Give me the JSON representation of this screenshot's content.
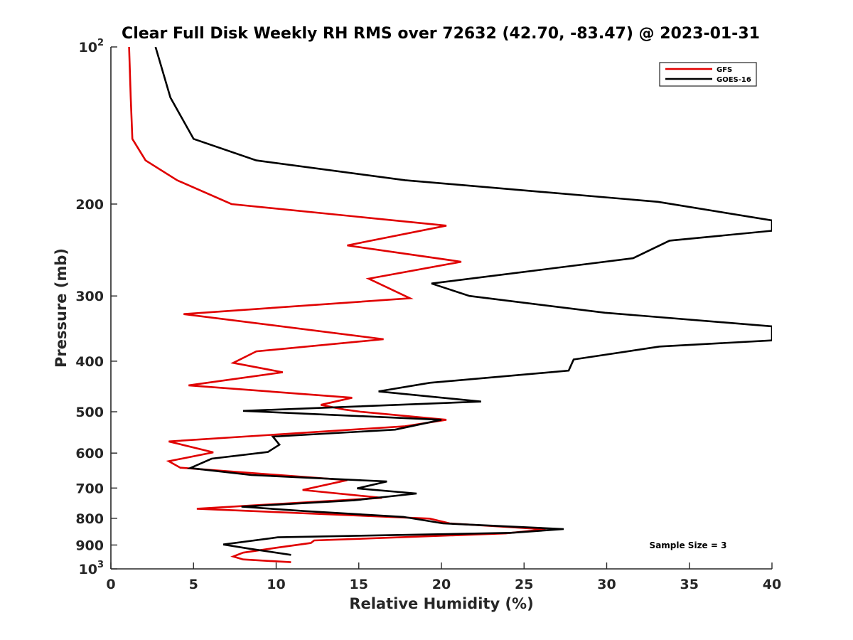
{
  "chart_data": {
    "type": "line",
    "title": "Clear Full Disk Weekly RH RMS over 72632 (42.70, -83.47) @ 2023-01-31",
    "xlabel": "Relative Humidity (%)",
    "ylabel": "Pressure (mb)",
    "xlim": [
      0,
      40
    ],
    "ylim": [
      100,
      1000
    ],
    "y_scale": "log",
    "y_reversed": true,
    "x_ticks": [
      "0",
      "5",
      "10",
      "15",
      "20",
      "25",
      "30",
      "35",
      "40"
    ],
    "y_ticks": [
      {
        "value": 100,
        "label": "10",
        "sup": "2"
      },
      {
        "value": 200,
        "label": "200",
        "sup": ""
      },
      {
        "value": 300,
        "label": "300",
        "sup": ""
      },
      {
        "value": 400,
        "label": "400",
        "sup": ""
      },
      {
        "value": 500,
        "label": "500",
        "sup": ""
      },
      {
        "value": 600,
        "label": "600",
        "sup": ""
      },
      {
        "value": 700,
        "label": "700",
        "sup": ""
      },
      {
        "value": 800,
        "label": "800",
        "sup": ""
      },
      {
        "value": 900,
        "label": "900",
        "sup": ""
      },
      {
        "value": 1000,
        "label": "10",
        "sup": "3"
      }
    ],
    "grid": false,
    "legend_position": "top-right",
    "annotation": "Sample Size = 3",
    "series": [
      {
        "name": "GFS",
        "color": "#e00000",
        "points": [
          [
            1.1,
            100
          ],
          [
            1.2,
            125
          ],
          [
            1.3,
            150
          ],
          [
            2.1,
            165
          ],
          [
            4.0,
            180
          ],
          [
            7.3,
            200
          ],
          [
            20.3,
            220
          ],
          [
            14.3,
            240
          ],
          [
            21.2,
            258
          ],
          [
            15.6,
            278
          ],
          [
            18.1,
            303
          ],
          [
            4.4,
            325
          ],
          [
            16.5,
            363
          ],
          [
            8.8,
            383
          ],
          [
            7.4,
            403
          ],
          [
            10.4,
            420
          ],
          [
            4.7,
            445
          ],
          [
            14.6,
            470
          ],
          [
            12.7,
            485
          ],
          [
            14.1,
            495
          ],
          [
            15.1,
            500
          ],
          [
            20.3,
            518
          ],
          [
            17.8,
            533
          ],
          [
            3.5,
            570
          ],
          [
            6.2,
            598
          ],
          [
            3.5,
            622
          ],
          [
            4.2,
            640
          ],
          [
            14.3,
            676
          ],
          [
            11.6,
            706
          ],
          [
            16.4,
            731
          ],
          [
            5.2,
            767
          ],
          [
            19.3,
            801
          ],
          [
            20.5,
            818
          ],
          [
            26.3,
            840
          ],
          [
            23.9,
            855
          ],
          [
            12.3,
            882
          ],
          [
            12.1,
            892
          ],
          [
            10.0,
            911
          ],
          [
            8.0,
            931
          ],
          [
            7.4,
            947
          ],
          [
            8.0,
            959
          ],
          [
            10.9,
            971
          ]
        ]
      },
      {
        "name": "GOES-16",
        "color": "#000000",
        "points": [
          [
            2.7,
            100
          ],
          [
            3.6,
            125
          ],
          [
            5.0,
            150
          ],
          [
            8.8,
            165
          ],
          [
            17.8,
            180
          ],
          [
            33.1,
            198
          ],
          [
            40.0,
            215
          ],
          [
            40.0,
            225
          ],
          [
            33.8,
            235
          ],
          [
            31.6,
            254
          ],
          [
            19.4,
            284
          ],
          [
            21.7,
            300
          ],
          [
            29.9,
            323
          ],
          [
            40.0,
            343
          ],
          [
            40.0,
            365
          ],
          [
            33.2,
            375
          ],
          [
            28.0,
            397
          ],
          [
            27.7,
            417
          ],
          [
            19.3,
            440
          ],
          [
            16.2,
            457
          ],
          [
            22.4,
            478
          ],
          [
            8.0,
            498
          ],
          [
            20.0,
            518
          ],
          [
            17.2,
            541
          ],
          [
            9.8,
            558
          ],
          [
            10.2,
            578
          ],
          [
            9.5,
            597
          ],
          [
            6.1,
            615
          ],
          [
            4.8,
            641
          ],
          [
            8.5,
            661
          ],
          [
            16.7,
            680
          ],
          [
            14.9,
            701
          ],
          [
            18.5,
            717
          ],
          [
            14.7,
            739
          ],
          [
            7.9,
            760
          ],
          [
            11.7,
            775
          ],
          [
            17.7,
            795
          ],
          [
            20.1,
            818
          ],
          [
            27.4,
            839
          ],
          [
            24.2,
            853
          ],
          [
            10.1,
            870
          ],
          [
            6.8,
            898
          ],
          [
            8.4,
            915
          ],
          [
            10.9,
            940
          ]
        ]
      }
    ]
  }
}
